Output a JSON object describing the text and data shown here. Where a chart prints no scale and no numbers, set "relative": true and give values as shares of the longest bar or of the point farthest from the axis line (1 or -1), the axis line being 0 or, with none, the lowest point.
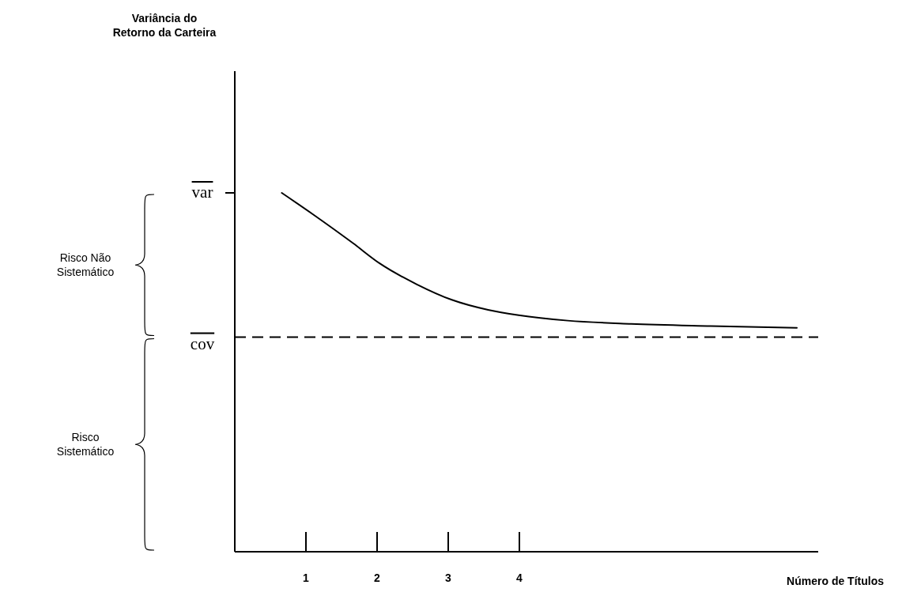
{
  "chart_data": {
    "type": "line",
    "relative": true,
    "xlabel": "Número de Títulos",
    "xlim": [
      0,
      8.2
    ],
    "xticks": [
      1,
      2,
      3,
      4
    ],
    "tick_labels": "x",
    "marker": "none",
    "line_style": "solid",
    "series": [
      {
        "color": "#000000",
        "x": [
          0.66,
          1.1,
          1.66,
          2.04,
          2.56,
          3.05,
          3.56,
          3.99,
          4.68,
          5.57,
          6.69,
          7.9
        ],
        "values": [
          1,
          0.94,
          0.86,
          0.803,
          0.745,
          0.702,
          0.674,
          0.659,
          0.644,
          0.635,
          0.629,
          0.624
        ]
      }
    ],
    "ref_lines": [
      {
        "axis": "y",
        "value": 0.598,
        "label": "cov",
        "line_style": "dashed",
        "color": "#000000"
      }
    ],
    "annotations": [
      "var",
      "Risco Não Sistemático",
      "Risco Sistemático",
      "Variância do Retorno da Carteira"
    ]
  }
}
